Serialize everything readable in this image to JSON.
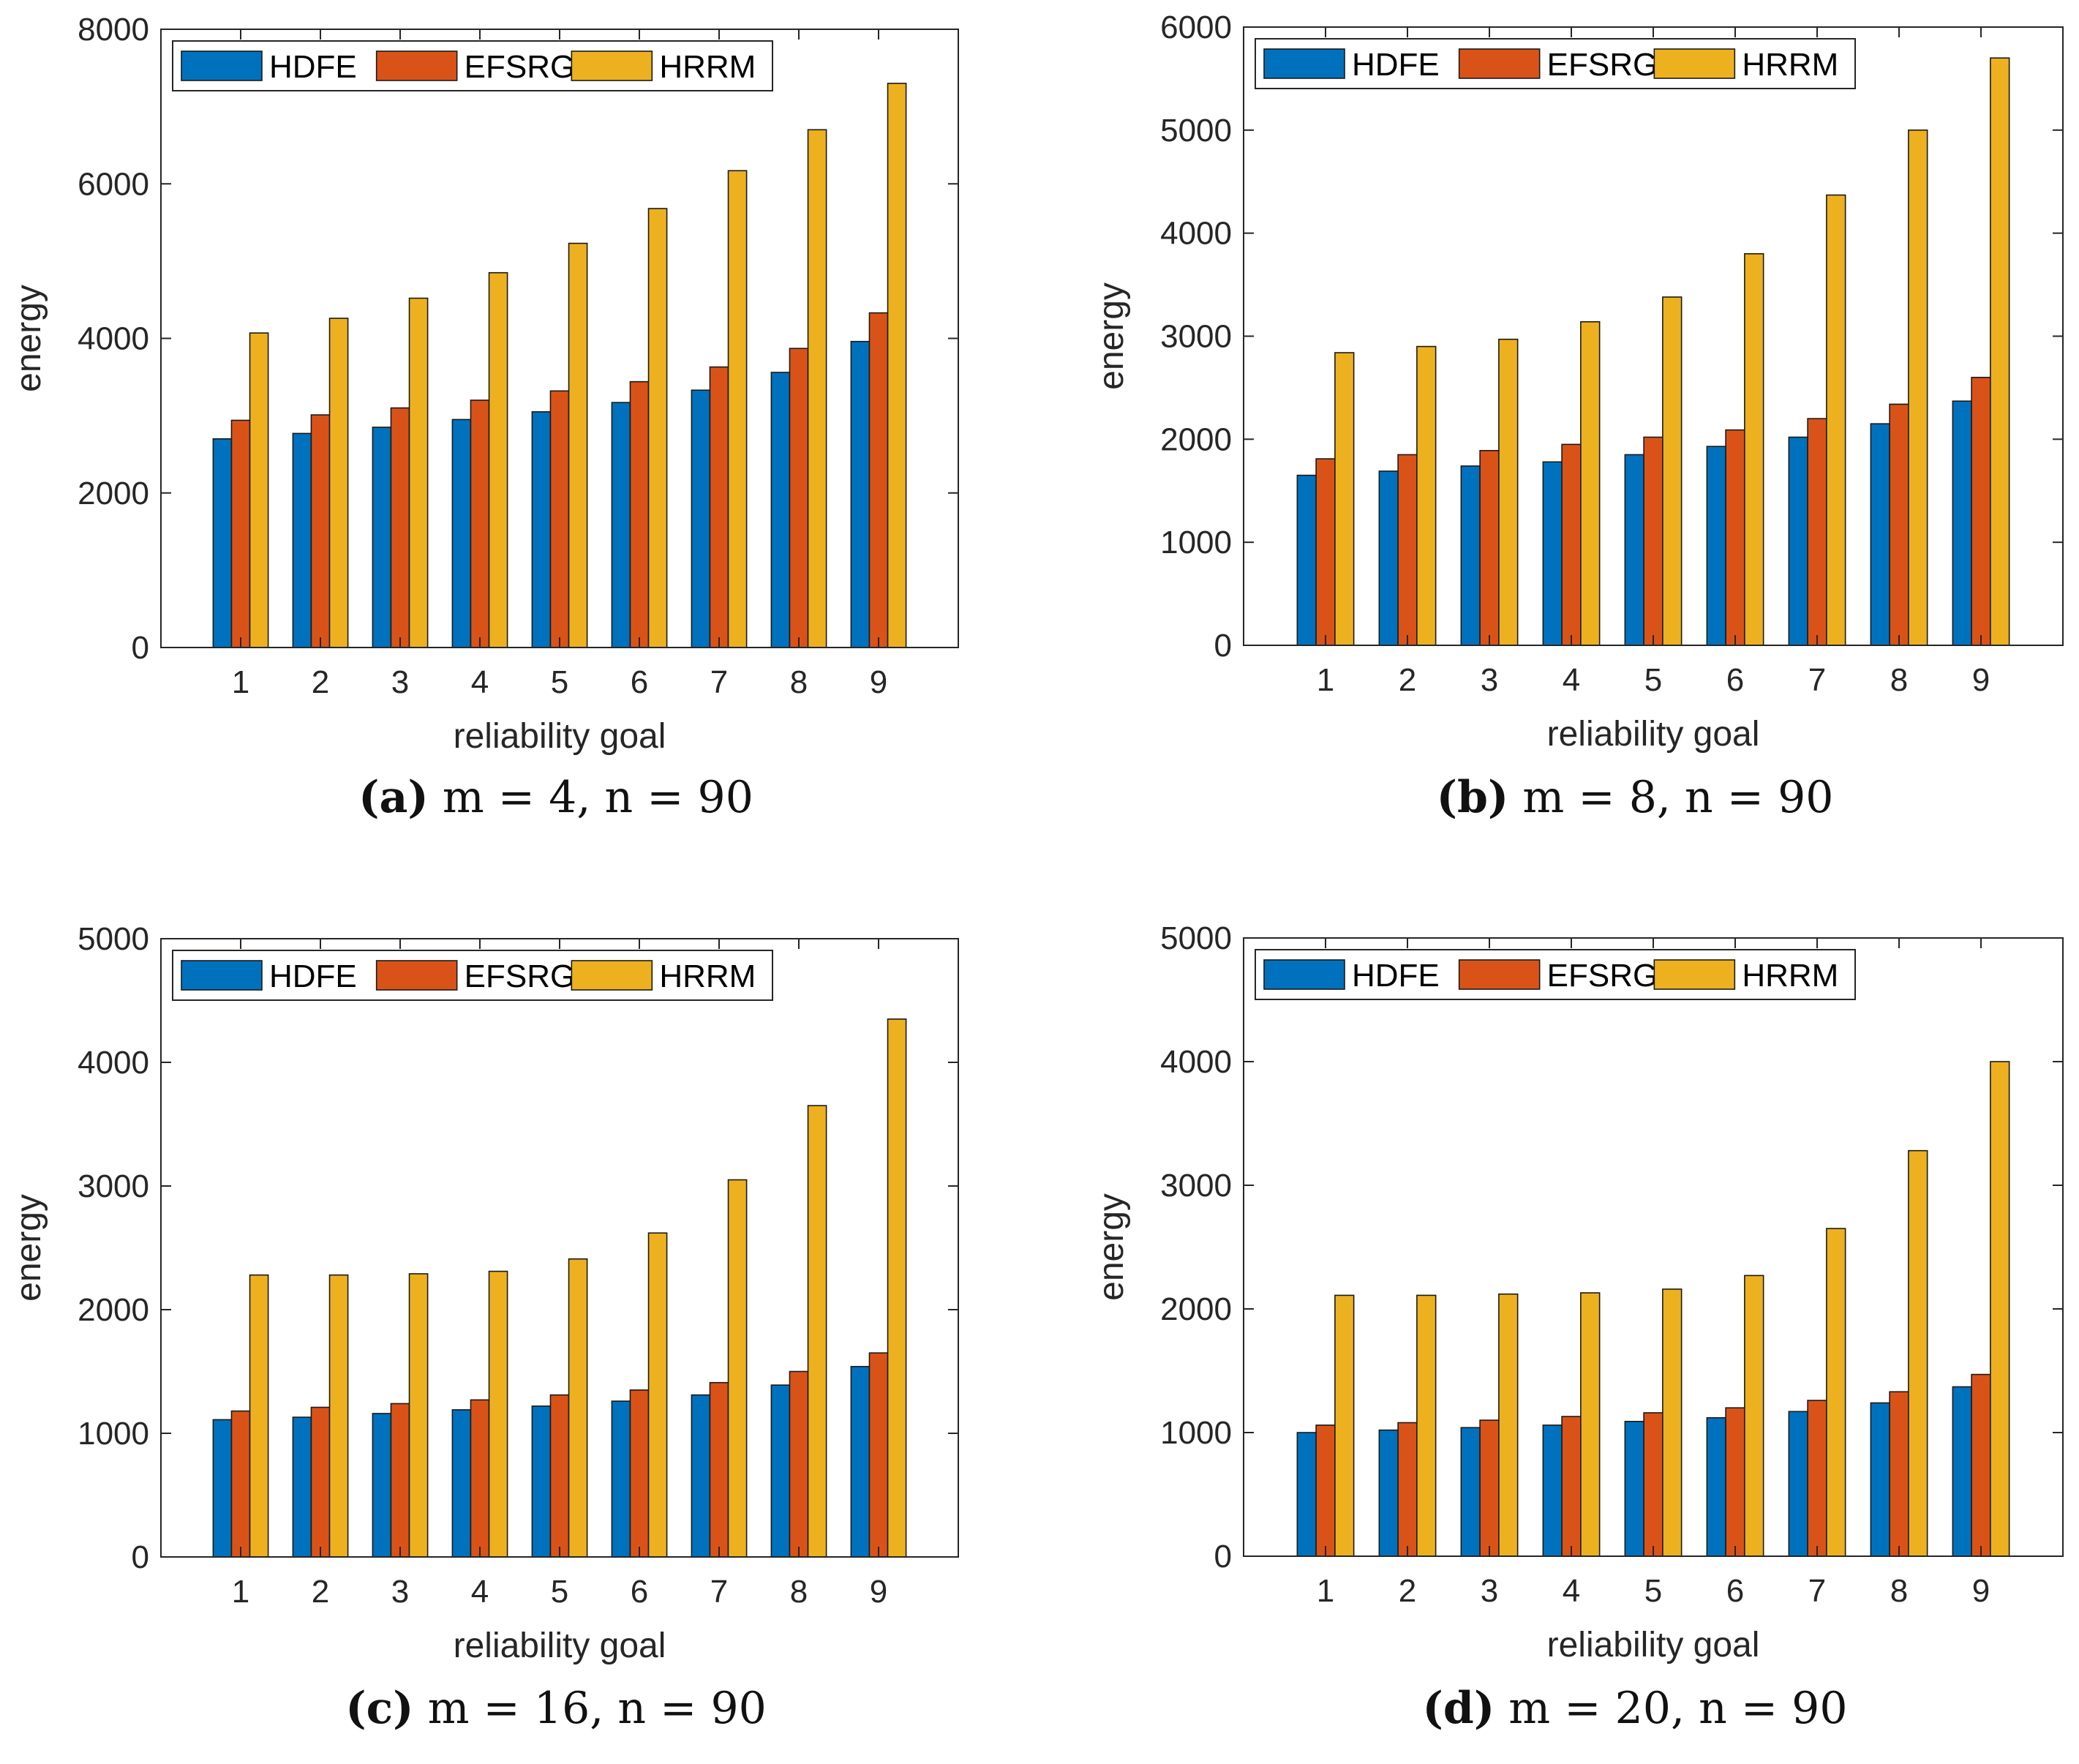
{
  "colors": {
    "HDFE": "#0072BD",
    "EFSRG": "#D95319",
    "HRRM": "#EDB120"
  },
  "chart_data": [
    {
      "type": "bar",
      "tag": "(a)",
      "caption": "m = 4, n = 90",
      "xlabel": "reliability goal",
      "ylabel": "energy",
      "categories": [
        "1",
        "2",
        "3",
        "4",
        "5",
        "6",
        "7",
        "8",
        "9"
      ],
      "ylim": [
        0,
        8000
      ],
      "yticks": [
        "0",
        "2000",
        "4000",
        "6000",
        "8000"
      ],
      "series": [
        {
          "name": "HDFE",
          "values": [
            2700,
            2770,
            2850,
            2950,
            3050,
            3170,
            3330,
            3560,
            3960
          ]
        },
        {
          "name": "EFSRG",
          "values": [
            2940,
            3010,
            3100,
            3200,
            3320,
            3440,
            3630,
            3870,
            4330
          ]
        },
        {
          "name": "HRRM",
          "values": [
            4070,
            4260,
            4520,
            4850,
            5230,
            5680,
            6170,
            6700,
            7300
          ]
        }
      ]
    },
    {
      "type": "bar",
      "tag": "(b)",
      "caption": "m = 8, n = 90",
      "xlabel": "reliability goal",
      "ylabel": "energy",
      "categories": [
        "1",
        "2",
        "3",
        "4",
        "5",
        "6",
        "7",
        "8",
        "9"
      ],
      "ylim": [
        0,
        6000
      ],
      "yticks": [
        "0",
        "1000",
        "2000",
        "3000",
        "4000",
        "5000",
        "6000"
      ],
      "series": [
        {
          "name": "HDFE",
          "values": [
            1650,
            1690,
            1740,
            1780,
            1850,
            1930,
            2020,
            2150,
            2370
          ]
        },
        {
          "name": "EFSRG",
          "values": [
            1810,
            1850,
            1890,
            1950,
            2020,
            2090,
            2200,
            2340,
            2600
          ]
        },
        {
          "name": "HRRM",
          "values": [
            2840,
            2900,
            2970,
            3140,
            3380,
            3800,
            4370,
            5000,
            5700
          ]
        }
      ]
    },
    {
      "type": "bar",
      "tag": "(c)",
      "caption": "m = 16, n = 90",
      "xlabel": "reliability goal",
      "ylabel": "energy",
      "categories": [
        "1",
        "2",
        "3",
        "4",
        "5",
        "6",
        "7",
        "8",
        "9"
      ],
      "ylim": [
        0,
        5000
      ],
      "yticks": [
        "0",
        "1000",
        "2000",
        "3000",
        "4000",
        "5000"
      ],
      "series": [
        {
          "name": "HDFE",
          "values": [
            1110,
            1130,
            1160,
            1190,
            1220,
            1260,
            1310,
            1390,
            1540
          ]
        },
        {
          "name": "EFSRG",
          "values": [
            1180,
            1210,
            1240,
            1270,
            1310,
            1350,
            1410,
            1500,
            1650
          ]
        },
        {
          "name": "HRRM",
          "values": [
            2280,
            2280,
            2290,
            2310,
            2410,
            2620,
            3050,
            3650,
            4350
          ]
        }
      ]
    },
    {
      "type": "bar",
      "tag": "(d)",
      "caption": "m = 20, n = 90",
      "xlabel": "reliability goal",
      "ylabel": "energy",
      "categories": [
        "1",
        "2",
        "3",
        "4",
        "5",
        "6",
        "7",
        "8",
        "9"
      ],
      "ylim": [
        0,
        5000
      ],
      "yticks": [
        "0",
        "1000",
        "2000",
        "3000",
        "4000",
        "5000"
      ],
      "series": [
        {
          "name": "HDFE",
          "values": [
            1000,
            1020,
            1040,
            1060,
            1090,
            1120,
            1170,
            1240,
            1370
          ]
        },
        {
          "name": "EFSRG",
          "values": [
            1060,
            1080,
            1100,
            1130,
            1160,
            1200,
            1260,
            1330,
            1470
          ]
        },
        {
          "name": "HRRM",
          "values": [
            2110,
            2110,
            2120,
            2130,
            2160,
            2270,
            2650,
            3280,
            4000
          ]
        }
      ]
    }
  ]
}
